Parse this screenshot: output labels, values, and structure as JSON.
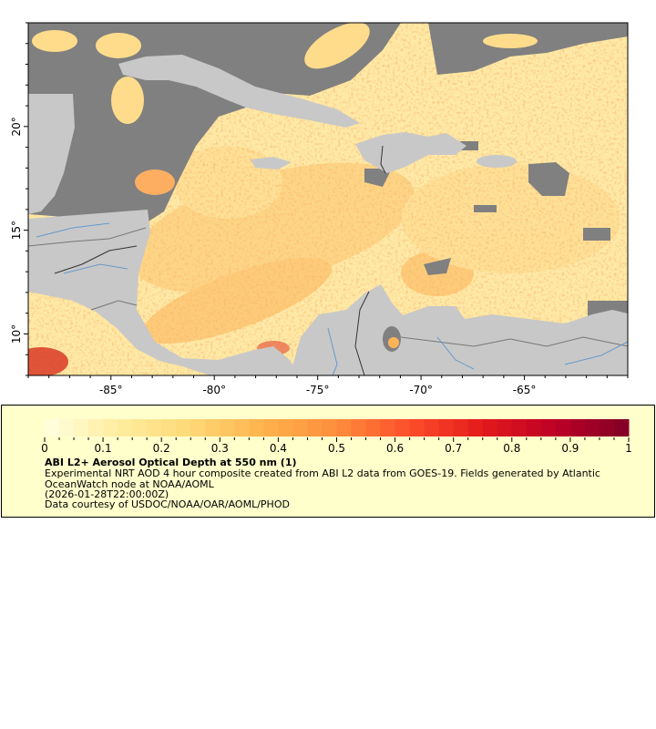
{
  "map": {
    "lon_range": [
      -89,
      -60
    ],
    "lat_range": [
      8,
      25
    ],
    "lon_ticks": [
      -85,
      -80,
      -75,
      -70,
      -65
    ],
    "lon_labels": [
      "-85°",
      "-80°",
      "-75°",
      "-70°",
      "-65°"
    ],
    "lat_ticks": [
      20,
      15,
      10
    ],
    "lat_labels": [
      "20°",
      "15°",
      "10°"
    ],
    "colors": {
      "land": "#c8c8c8",
      "no_data": "#808080",
      "rivers": "#6699cc",
      "borders": "#777777"
    }
  },
  "legend": {
    "colorbar": {
      "min": 0,
      "max": 1,
      "palette": "YlOrRd",
      "tick_values": [
        0,
        0.1,
        0.2,
        0.3,
        0.4,
        0.5,
        0.6,
        0.7,
        0.8,
        0.9,
        1
      ],
      "tick_labels": [
        "0",
        "0.1",
        "0.2",
        "0.3",
        "0.4",
        "0.5",
        "0.6",
        "0.7",
        "0.8",
        "0.9",
        "1"
      ],
      "low_color": "#ffffe0",
      "high_color": "#800026"
    },
    "title": "ABI L2+ Aerosol Optical Depth at 550 nm (1)",
    "description": "Experimental NRT AOD 4 hour composite created from ABI L2 data from GOES-19. Fields generated by Atlantic OceanWatch node at NOAA/AOML",
    "time": "(2026-01-28T22:00:00Z)",
    "credit": "Data courtesy of USDOC/NOAA/OAR/AOML/PHOD"
  }
}
